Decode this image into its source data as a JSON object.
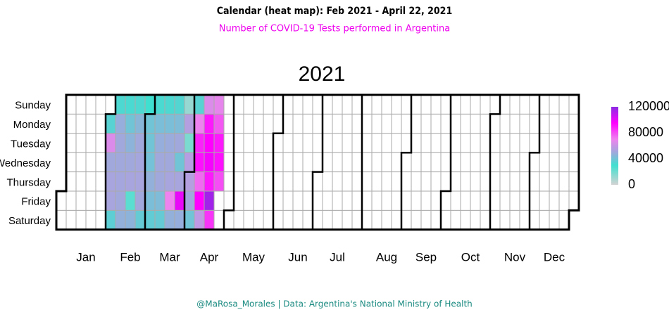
{
  "chart_data": {
    "type": "calendar_heatmap",
    "title": "Calendar (heat map):  Feb 2021 - April 22, 2021",
    "subtitle": "Number of COVID-19 Tests performed in Argentina",
    "year_label": "2021",
    "footer": "@MaRosa_Morales | Data: Argentina's National Ministry of Health",
    "weekdays": [
      "Sunday",
      "Monday",
      "Tuesday",
      "Wednesday",
      "Thursday",
      "Friday",
      "Saturday"
    ],
    "months": [
      "Jan",
      "Feb",
      "Mar",
      "Apr",
      "May",
      "Jun",
      "Jul",
      "Aug",
      "Sep",
      "Oct",
      "Nov",
      "Dec"
    ],
    "x": [
      "2021-02-01",
      "2021-02-02",
      "2021-02-03",
      "2021-02-04",
      "2021-02-05",
      "2021-02-06",
      "2021-02-07",
      "2021-02-08",
      "2021-02-09",
      "2021-02-10",
      "2021-02-11",
      "2021-02-12",
      "2021-02-13",
      "2021-02-14",
      "2021-02-15",
      "2021-02-16",
      "2021-02-17",
      "2021-02-18",
      "2021-02-19",
      "2021-02-20",
      "2021-02-21",
      "2021-02-22",
      "2021-02-23",
      "2021-02-24",
      "2021-02-25",
      "2021-02-26",
      "2021-02-27",
      "2021-02-28",
      "2021-03-01",
      "2021-03-02",
      "2021-03-03",
      "2021-03-04",
      "2021-03-05",
      "2021-03-06",
      "2021-03-07",
      "2021-03-08",
      "2021-03-09",
      "2021-03-10",
      "2021-03-11",
      "2021-03-12",
      "2021-03-13",
      "2021-03-14",
      "2021-03-15",
      "2021-03-16",
      "2021-03-17",
      "2021-03-18",
      "2021-03-19",
      "2021-03-20",
      "2021-03-21",
      "2021-03-22",
      "2021-03-23",
      "2021-03-24",
      "2021-03-25",
      "2021-03-26",
      "2021-03-27",
      "2021-03-28",
      "2021-03-29",
      "2021-03-30",
      "2021-03-31",
      "2021-04-01",
      "2021-04-02",
      "2021-04-03",
      "2021-04-04",
      "2021-04-05",
      "2021-04-06",
      "2021-04-07",
      "2021-04-08",
      "2021-04-09",
      "2021-04-10",
      "2021-04-11",
      "2021-04-12",
      "2021-04-13",
      "2021-04-14",
      "2021-04-15",
      "2021-04-16",
      "2021-04-17",
      "2021-04-18",
      "2021-04-19",
      "2021-04-20",
      "2021-04-21",
      "2021-04-22"
    ],
    "values": [
      35000,
      65000,
      50000,
      52000,
      52000,
      36000,
      33000,
      48000,
      50000,
      50000,
      51000,
      50000,
      47000,
      32000,
      40000,
      46000,
      50000,
      52000,
      25000,
      46000,
      33000,
      45000,
      50000,
      51000,
      52000,
      50000,
      38000,
      30000,
      40000,
      40000,
      41000,
      47000,
      42000,
      37000,
      32000,
      42000,
      48000,
      50000,
      50000,
      43000,
      38000,
      33000,
      42000,
      49000,
      50000,
      52000,
      70000,
      47000,
      34000,
      43000,
      50000,
      40000,
      52000,
      100000,
      48000,
      12000,
      55000,
      18000,
      56000,
      55000,
      50000,
      40000,
      35000,
      70000,
      88000,
      92000,
      75000,
      95000,
      58000,
      65000,
      90000,
      95000,
      97000,
      90000,
      115000,
      85000,
      68000,
      78000,
      90000,
      92000,
      80000
    ],
    "colorscale": [
      [
        0,
        "#d3d3d3"
      ],
      [
        30000,
        "#40e0d0"
      ],
      [
        50000,
        "#a0a8dc"
      ],
      [
        70000,
        "#ee82ee"
      ],
      [
        95000,
        "#ff00ff"
      ],
      [
        120000,
        "#8a2be2"
      ]
    ],
    "clim": [
      0,
      120000
    ],
    "cticks": [
      0,
      40000,
      80000,
      120000
    ]
  }
}
